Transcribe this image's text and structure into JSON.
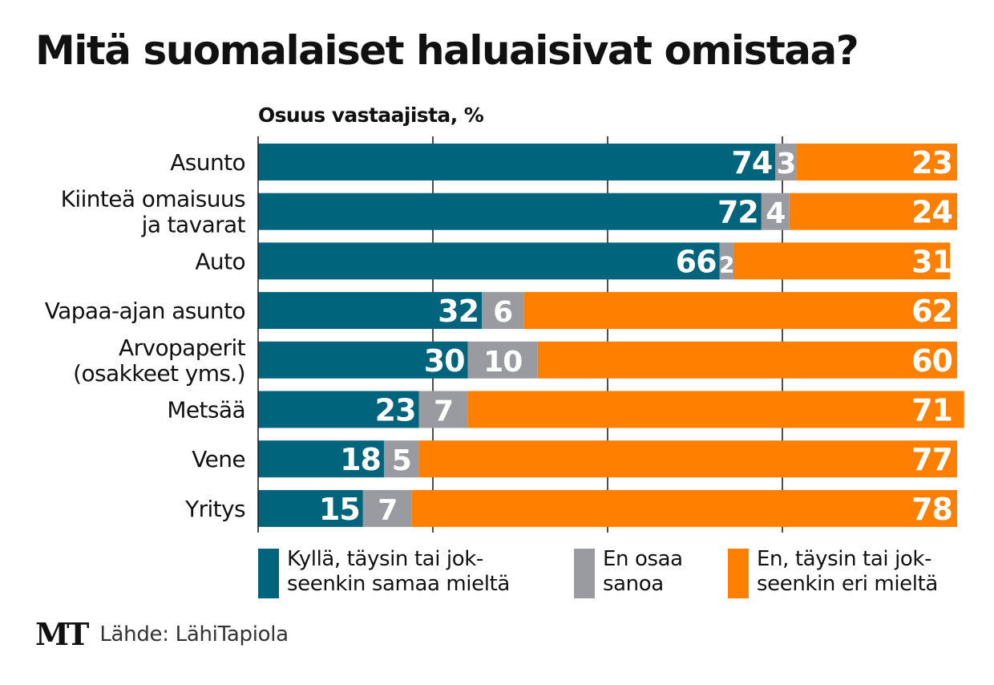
{
  "chart_data": {
    "type": "bar",
    "stacked": true,
    "orientation": "horizontal",
    "title": "Mitä suomalaiset haluaisivat omistaa?",
    "subtitle": "Osuus vastaajista, %",
    "categories": [
      "Asunto",
      "Kiinteä omaisuus\nja tavarat",
      "Auto",
      "Vapaa-ajan asunto",
      "Arvopaperit\n(osakkeet yms.)",
      "Metsää",
      "Vene",
      "Yritys"
    ],
    "series": [
      {
        "name": "Kyllä, täysin tai jok-\nseenkin samaa mieltä",
        "color": "#00647c",
        "values": [
          74,
          72,
          66,
          32,
          30,
          23,
          18,
          15
        ]
      },
      {
        "name": "En osaa\nsanoa",
        "color": "#999ba0",
        "values": [
          3,
          4,
          2,
          6,
          10,
          7,
          5,
          7
        ]
      },
      {
        "name": "En, täysin tai jok-\nseenkin eri mieltä",
        "color": "#ff7f00",
        "values": [
          23,
          24,
          31,
          62,
          60,
          71,
          77,
          78
        ]
      }
    ],
    "xlim": [
      0,
      100
    ],
    "grid": true,
    "legend_position": "bottom"
  },
  "footer": {
    "logo": "MT",
    "source": "Lähde: LähiTapiola"
  }
}
